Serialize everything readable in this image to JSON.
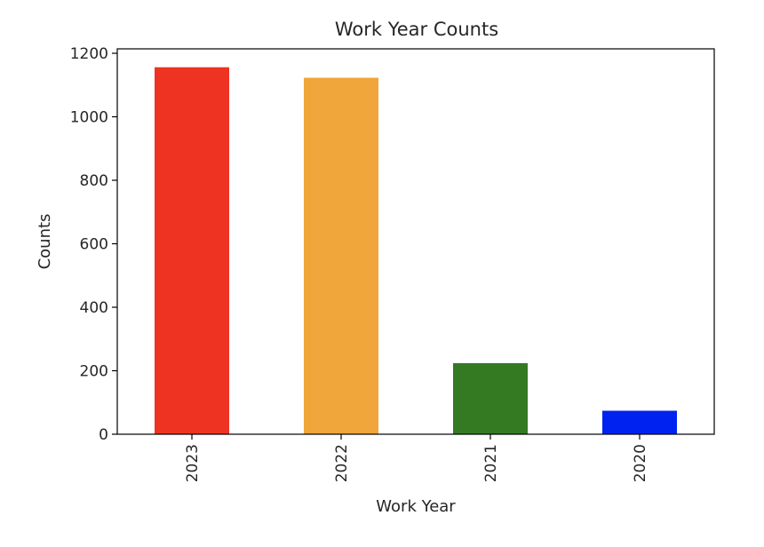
{
  "chart_data": {
    "type": "bar",
    "title": "Work Year Counts",
    "xlabel": "Work Year",
    "ylabel": "Counts",
    "categories": [
      "2023",
      "2022",
      "2021",
      "2020"
    ],
    "values": [
      1156,
      1123,
      224,
      74
    ],
    "colors": [
      "#ee3322",
      "#f0a63a",
      "#347a23",
      "#0022f0"
    ],
    "ylim": [
      0,
      1214
    ],
    "yticks": [
      0,
      200,
      400,
      600,
      800,
      1000,
      1200
    ],
    "ytick_labels": [
      "0",
      "200",
      "400",
      "600",
      "800",
      "1000",
      "1200"
    ],
    "grid": false,
    "legend": false,
    "x_tick_rotation": "vertical"
  }
}
